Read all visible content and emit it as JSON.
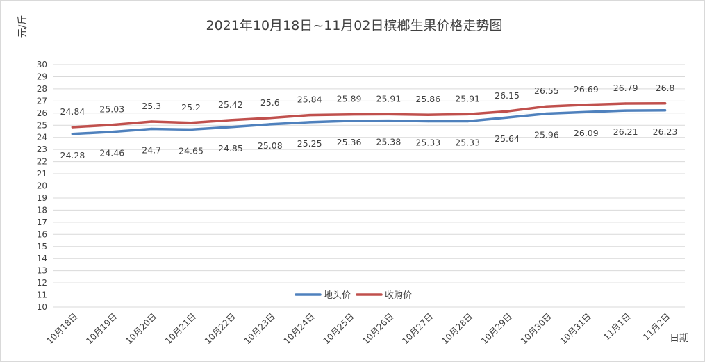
{
  "chart_data": {
    "type": "line",
    "title": "2021年10月18日~11月02日槟榔生果价格走势图",
    "ylabel": "元/斤",
    "xlabel": "日期",
    "ylim": [
      10,
      30
    ],
    "ytick_step": 1,
    "grid": true,
    "legend_position": "bottom-center",
    "categories": [
      "10月18日",
      "10月19日",
      "10月20日",
      "10月21日",
      "10月22日",
      "10月23日",
      "10月24日",
      "10月25日",
      "10月26日",
      "10月27日",
      "10月28日",
      "10月29日",
      "10月30日",
      "10月31日",
      "11月1日",
      "11月2日"
    ],
    "series": [
      {
        "name": "地头价",
        "color": "#4f81bd",
        "label_position": "below",
        "values": [
          24.28,
          24.46,
          24.7,
          24.65,
          24.85,
          25.08,
          25.25,
          25.36,
          25.38,
          25.33,
          25.33,
          25.64,
          25.96,
          26.09,
          26.21,
          26.23
        ]
      },
      {
        "name": "收购价",
        "color": "#c0504d",
        "label_position": "above",
        "values": [
          24.84,
          25.03,
          25.3,
          25.2,
          25.42,
          25.6,
          25.84,
          25.89,
          25.91,
          25.86,
          25.91,
          26.15,
          26.55,
          26.69,
          26.79,
          26.8
        ]
      }
    ]
  }
}
